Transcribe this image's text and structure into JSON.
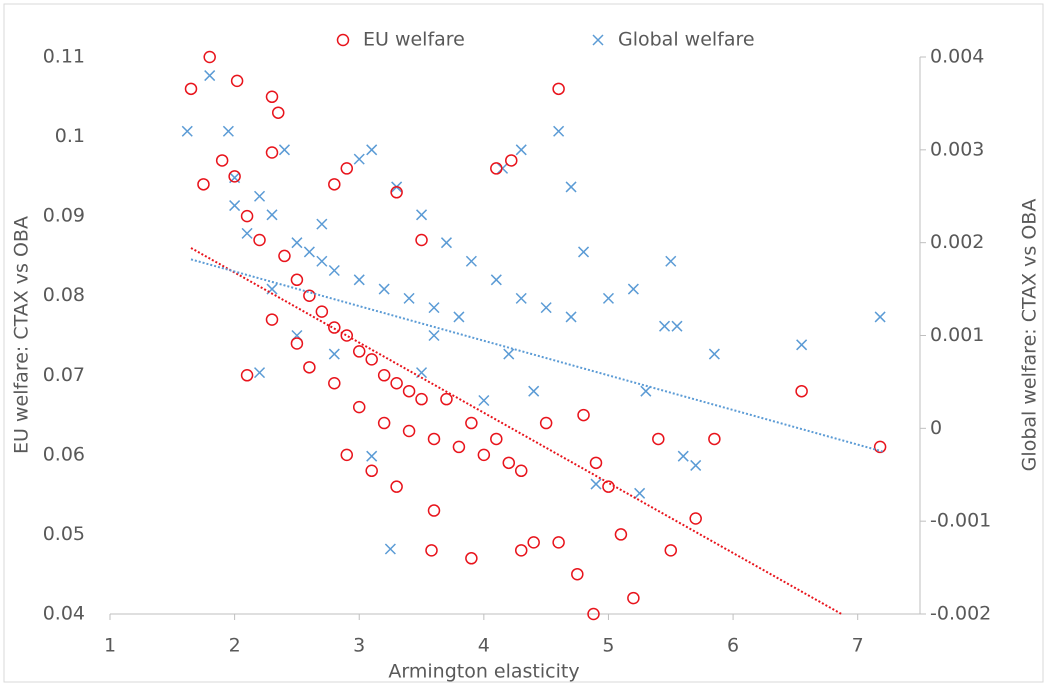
{
  "chart_data": {
    "type": "scatter",
    "x_label": "Armington elasticity",
    "y_label": "EU welfare: CTAX vs OBA",
    "y2_label": "Global welfare: CTAX vs OBA",
    "xlim": [
      1,
      7.5
    ],
    "xticks": [
      1,
      2,
      3,
      4,
      5,
      6,
      7
    ],
    "ylim": [
      0.04,
      0.11
    ],
    "yticks": [
      0.04,
      0.05,
      0.06,
      0.07,
      0.08,
      0.09,
      0.1,
      0.11
    ],
    "y2lim": [
      -0.002,
      0.004
    ],
    "y2ticks": [
      -0.002,
      -0.001,
      0,
      0.001,
      0.002,
      0.003,
      0.004
    ],
    "grid": false,
    "legend": "top",
    "series": [
      {
        "name": "EU welfare",
        "color": "#e8141c",
        "marker": "circle",
        "x": [
          1.65,
          1.8,
          2.02,
          2.3,
          2.35,
          2.3,
          1.9,
          2.0,
          1.75,
          2.1,
          2.2,
          2.4,
          2.5,
          2.6,
          2.7,
          2.8,
          2.9,
          3.0,
          3.1,
          3.2,
          3.3,
          3.4,
          3.5,
          2.6,
          2.8,
          3.0,
          3.2,
          3.4,
          3.6,
          3.8,
          4.0,
          4.2,
          2.9,
          3.1,
          3.3,
          3.6,
          3.9,
          3.58,
          4.3,
          4.4,
          4.6,
          4.6,
          4.1,
          4.22,
          4.5,
          4.8,
          4.9,
          5.0,
          5.2,
          4.88,
          4.75,
          5.1,
          5.5,
          5.7,
          5.4,
          5.85,
          6.55,
          7.18,
          2.1,
          2.3,
          2.5,
          3.7,
          3.9,
          4.1,
          4.3,
          3.5,
          3.3,
          2.8,
          2.9
        ],
        "values": [
          0.106,
          0.11,
          0.107,
          0.105,
          0.103,
          0.098,
          0.097,
          0.095,
          0.094,
          0.09,
          0.087,
          0.085,
          0.082,
          0.08,
          0.078,
          0.076,
          0.075,
          0.073,
          0.072,
          0.07,
          0.069,
          0.068,
          0.067,
          0.071,
          0.069,
          0.066,
          0.064,
          0.063,
          0.062,
          0.061,
          0.06,
          0.059,
          0.06,
          0.058,
          0.056,
          0.053,
          0.047,
          0.048,
          0.048,
          0.049,
          0.049,
          0.106,
          0.096,
          0.097,
          0.064,
          0.065,
          0.059,
          0.056,
          0.042,
          0.04,
          0.045,
          0.05,
          0.048,
          0.052,
          0.062,
          0.062,
          0.068,
          0.061,
          0.07,
          0.077,
          0.074,
          0.067,
          0.064,
          0.062,
          0.058,
          0.087,
          0.093,
          0.094,
          0.096
        ],
        "trendline": {
          "x": [
            1.65,
            6.87
          ],
          "values": [
            0.086,
            0.04
          ]
        }
      },
      {
        "name": "Global welfare",
        "color": "#5b9bd5",
        "marker": "cross",
        "axis": "y2",
        "x": [
          1.62,
          1.8,
          1.95,
          2.0,
          2.2,
          2.4,
          2.3,
          2.1,
          2.5,
          2.6,
          2.7,
          2.8,
          3.0,
          3.2,
          3.4,
          3.6,
          3.8,
          3.0,
          3.1,
          3.3,
          3.5,
          3.7,
          3.9,
          4.1,
          4.3,
          4.5,
          4.7,
          4.6,
          4.3,
          4.15,
          4.7,
          4.8,
          5.0,
          5.2,
          5.5,
          5.45,
          5.55,
          5.85,
          6.55,
          7.18,
          5.3,
          5.6,
          5.7,
          5.25,
          3.25,
          3.1,
          2.2,
          2.5,
          2.8,
          3.5,
          4.0,
          4.4,
          4.9,
          2.0,
          2.3,
          2.7,
          3.6,
          4.2
        ],
        "values": [
          0.0032,
          0.0038,
          0.0032,
          0.0027,
          0.0025,
          0.003,
          0.0023,
          0.0021,
          0.002,
          0.0019,
          0.0018,
          0.0017,
          0.0016,
          0.0015,
          0.0014,
          0.0013,
          0.0012,
          0.0029,
          0.003,
          0.0026,
          0.0023,
          0.002,
          0.0018,
          0.0016,
          0.0014,
          0.0013,
          0.0012,
          0.0032,
          0.003,
          0.0028,
          0.0026,
          0.0019,
          0.0014,
          0.0015,
          0.0018,
          0.0011,
          0.0011,
          0.0008,
          0.0009,
          0.0012,
          0.0004,
          -0.0003,
          -0.0004,
          -0.0007,
          -0.0013,
          -0.0003,
          0.0006,
          0.001,
          0.0008,
          0.0006,
          0.0003,
          0.0004,
          -0.0006,
          0.0024,
          0.0015,
          0.0022,
          0.001,
          0.0008
        ],
        "trendline": {
          "x": [
            1.65,
            7.2
          ],
          "values": [
            0.00182,
            -0.00025
          ]
        }
      }
    ]
  }
}
